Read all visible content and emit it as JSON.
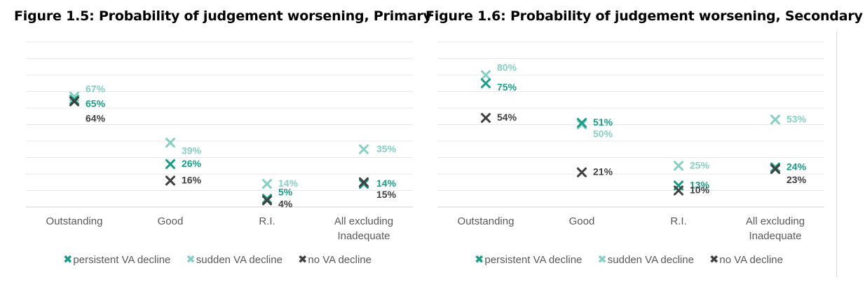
{
  "colors": {
    "persistent": "#1a9c85",
    "sudden": "#87cfc2",
    "none": "#404040",
    "grid": "#e8e8e8",
    "axis": "#d0d0d0",
    "tick": "#595959"
  },
  "legend": [
    {
      "key": "persistent",
      "label": "persistent VA decline"
    },
    {
      "key": "sudden",
      "label": "sudden VA decline"
    },
    {
      "key": "none",
      "label": "no VA decline"
    }
  ],
  "chart_data": [
    {
      "type": "scatter",
      "title": "Figure 1.5: Probability of judgement worsening, Primary",
      "categories": [
        [
          "Outstanding"
        ],
        [
          "Good"
        ],
        [
          "R.I."
        ],
        [
          "All excluding",
          "Inadequate"
        ]
      ],
      "ylim": [
        0,
        100
      ],
      "grid": true,
      "legend_position": "bottom",
      "series": [
        {
          "key": "persistent",
          "name": "persistent VA decline",
          "values": [
            65,
            26,
            5,
            14
          ],
          "labels": [
            "65%",
            "26%",
            "5%",
            "14%"
          ]
        },
        {
          "key": "sudden",
          "name": "sudden VA decline",
          "values": [
            67,
            39,
            14,
            35
          ],
          "labels": [
            "67%",
            "39%",
            "14%",
            "35%"
          ]
        },
        {
          "key": "none",
          "name": "no VA decline",
          "values": [
            64,
            16,
            4,
            15
          ],
          "labels": [
            "64%",
            "16%",
            "4%",
            "15%"
          ]
        }
      ]
    },
    {
      "type": "scatter",
      "title": "Figure 1.6: Probability of judgement worsening, Secondary",
      "categories": [
        [
          "Outstanding"
        ],
        [
          "Good"
        ],
        [
          "R.I."
        ],
        [
          "All excluding",
          "Inadequate"
        ]
      ],
      "ylim": [
        0,
        100
      ],
      "grid": true,
      "legend_position": "bottom",
      "series": [
        {
          "key": "persistent",
          "name": "persistent VA decline",
          "values": [
            75,
            51,
            13,
            24
          ],
          "labels": [
            "75%",
            "51%",
            "13%",
            "24%"
          ]
        },
        {
          "key": "sudden",
          "name": "sudden VA decline",
          "values": [
            80,
            50,
            25,
            53
          ],
          "labels": [
            "80%",
            "50%",
            "25%",
            "53%"
          ]
        },
        {
          "key": "none",
          "name": "no VA decline",
          "values": [
            54,
            21,
            10,
            23
          ],
          "labels": [
            "54%",
            "21%",
            "10%",
            "23%"
          ]
        }
      ]
    }
  ]
}
